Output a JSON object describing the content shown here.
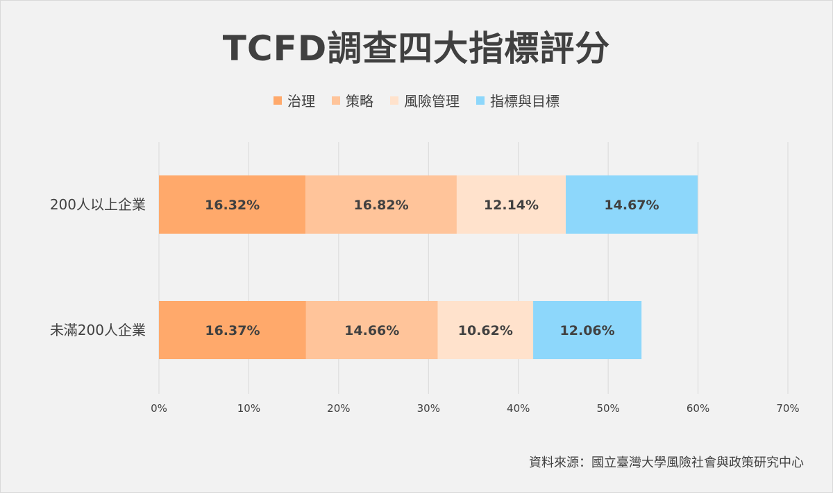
{
  "title": "TCFD調查四大指標評分",
  "source": "資料來源：國立臺灣大學風險社會與政策研究中心",
  "chart_data": {
    "type": "bar",
    "orientation": "horizontal",
    "stacked": true,
    "title": "TCFD調查四大指標評分",
    "categories": [
      "200人以上企業",
      "未滿200人企業"
    ],
    "series": [
      {
        "name": "治理",
        "color": "#ffa96b",
        "values": [
          16.32,
          16.37
        ],
        "labels": [
          "16.32%",
          "16.37%"
        ]
      },
      {
        "name": "策略",
        "color": "#ffc49a",
        "values": [
          16.82,
          14.66
        ],
        "labels": [
          "16.82%",
          "14.66%"
        ]
      },
      {
        "name": "風險管理",
        "color": "#ffe2cc",
        "values": [
          12.14,
          10.62
        ],
        "labels": [
          "12.14%",
          "10.62%"
        ]
      },
      {
        "name": "指標與目標",
        "color": "#8dd7fb",
        "values": [
          14.67,
          12.06
        ],
        "labels": [
          "14.67%",
          "12.06%"
        ]
      }
    ],
    "xlim": [
      0,
      70
    ],
    "xticks": [
      0,
      10,
      20,
      30,
      40,
      50,
      60,
      70
    ],
    "xtick_labels": [
      "0%",
      "10%",
      "20%",
      "30%",
      "40%",
      "50%",
      "60%",
      "70%"
    ],
    "grid": true,
    "legend_position": "top"
  }
}
